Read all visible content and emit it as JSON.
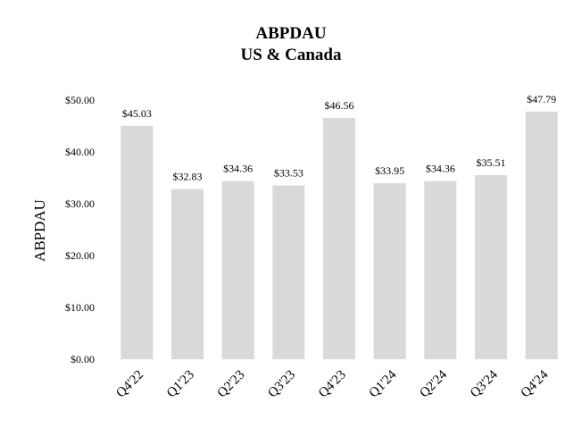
{
  "chart_data": {
    "type": "bar",
    "title": "ABPDAU",
    "subtitle": "US & Canada",
    "xlabel": "",
    "ylabel": "ABPDAU",
    "categories": [
      "Q4'22",
      "Q1'23",
      "Q2'23",
      "Q3'23",
      "Q4'23",
      "Q1'24",
      "Q2'24",
      "Q3'24",
      "Q4'24"
    ],
    "values": [
      45.03,
      32.83,
      34.36,
      33.53,
      46.56,
      33.95,
      34.36,
      35.51,
      47.79
    ],
    "data_labels": [
      "$45.03",
      "$32.83",
      "$34.36",
      "$33.53",
      "$46.56",
      "$33.95",
      "$34.36",
      "$35.51",
      "$47.79"
    ],
    "y_ticks": [
      0,
      10,
      20,
      30,
      40,
      50
    ],
    "y_tick_labels": [
      "$0.00",
      "$10.00",
      "$20.00",
      "$30.00",
      "$40.00",
      "$50.00"
    ],
    "ylim": [
      0,
      50
    ],
    "grid": false,
    "bar_color": "#d9d9d9"
  }
}
